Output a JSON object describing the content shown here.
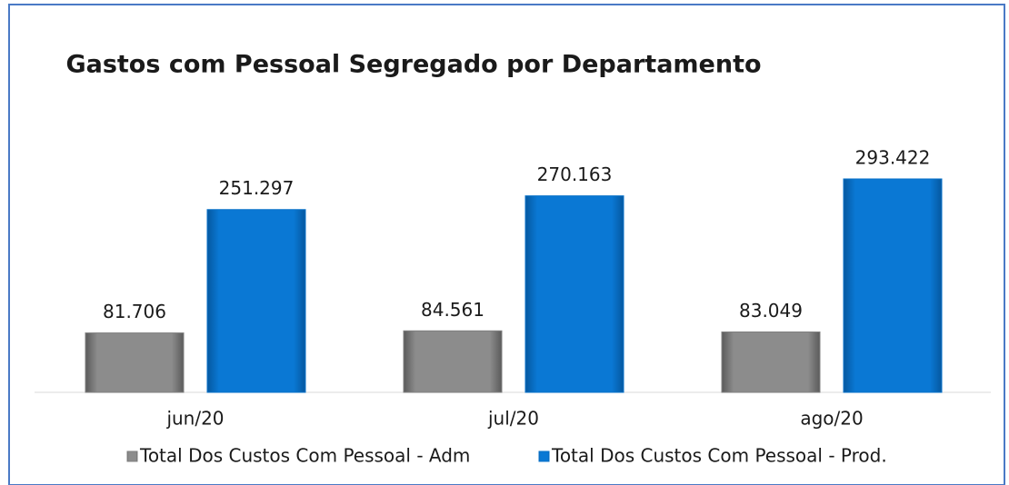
{
  "chart_data": {
    "type": "bar",
    "title": "Gastos com Pessoal Segregado por Departamento",
    "categories": [
      "jun/20",
      "jul/20",
      "ago/20"
    ],
    "series": [
      {
        "name": "Total Dos Custos Com Pessoal - Adm",
        "color": "#808080",
        "values": [
          81706,
          84561,
          83049
        ],
        "value_labels": [
          "81.706",
          "84.561",
          "83.049"
        ]
      },
      {
        "name": "Total Dos Custos Com Pessoal - Prod.",
        "color": "#0a72c8",
        "values": [
          251297,
          270163,
          293422
        ],
        "value_labels": [
          "251.297",
          "270.163",
          "293.422"
        ]
      }
    ],
    "legend": "bottom"
  }
}
